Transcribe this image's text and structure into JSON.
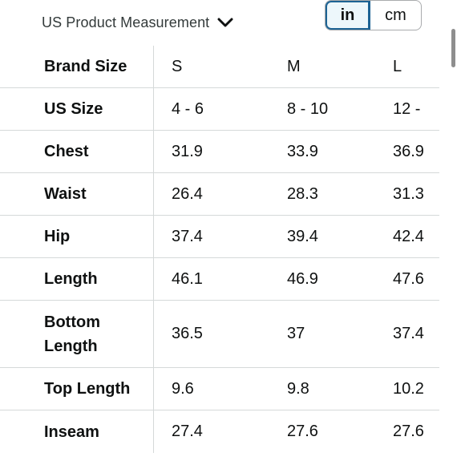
{
  "header": {
    "measurement_label": "US Product Measurement",
    "units": {
      "active": "in",
      "inactive": "cm"
    }
  },
  "table": {
    "columns": [
      "S",
      "M",
      "L"
    ],
    "rows": [
      {
        "label": "Brand Size",
        "values": [
          "S",
          "M",
          "L"
        ]
      },
      {
        "label": "US Size",
        "values": [
          "4 - 6",
          "8 - 10",
          "12 -"
        ]
      },
      {
        "label": "Chest",
        "values": [
          "31.9",
          "33.9",
          "36.9"
        ]
      },
      {
        "label": "Waist",
        "values": [
          "26.4",
          "28.3",
          "31.3"
        ]
      },
      {
        "label": "Hip",
        "values": [
          "37.4",
          "39.4",
          "42.4"
        ]
      },
      {
        "label": "Length",
        "values": [
          "46.1",
          "46.9",
          "47.6"
        ]
      },
      {
        "label": "Bottom Length",
        "values": [
          "36.5",
          "37",
          "37.4"
        ]
      },
      {
        "label": "Top Length",
        "values": [
          "9.6",
          "9.8",
          "10.2"
        ]
      },
      {
        "label": "Inseam",
        "values": [
          "27.4",
          "27.6",
          "27.6"
        ]
      }
    ]
  },
  "colors": {
    "accent": "#1d6394",
    "active_bg": "#edf7fb",
    "divider": "#d5d9d9"
  }
}
